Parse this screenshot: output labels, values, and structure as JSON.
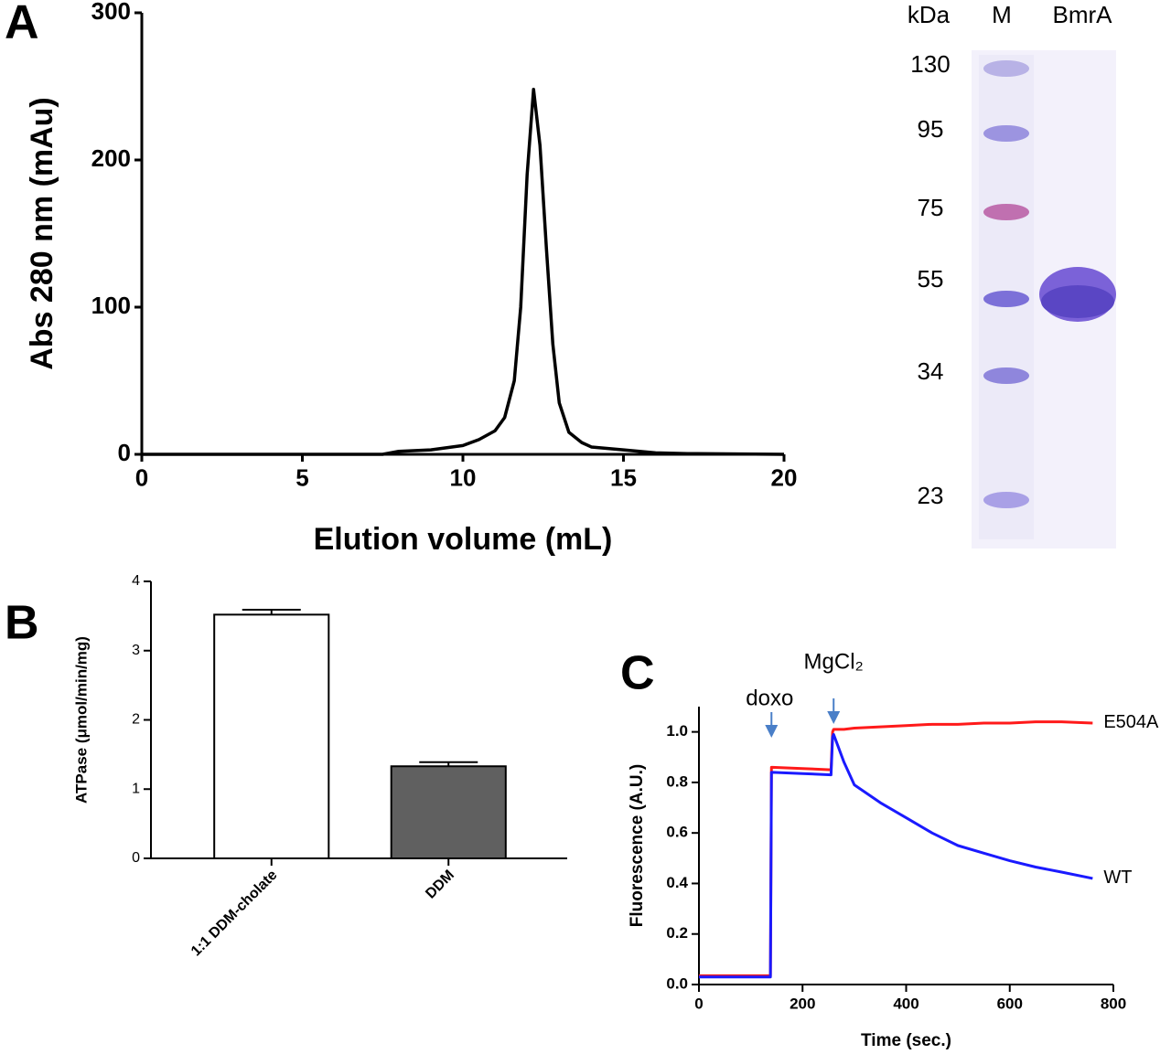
{
  "chart_data": [
    {
      "type": "line",
      "panel": "A",
      "x_label": "Elution volume (mL)",
      "y_label": "Abs 280 nm (mAu)",
      "x": [
        0,
        7.5,
        8,
        9,
        10,
        10.5,
        11,
        11.3,
        11.6,
        11.8,
        12,
        12.2,
        12.4,
        12.6,
        12.8,
        13,
        13.3,
        13.7,
        14,
        15,
        16,
        17,
        20
      ],
      "series": [
        {
          "color": "#000000",
          "values": [
            0,
            0,
            2,
            3,
            6,
            10,
            16,
            25,
            50,
            100,
            190,
            248,
            210,
            140,
            75,
            35,
            15,
            8,
            5,
            3,
            1,
            0.5,
            0
          ]
        }
      ],
      "xlim": [
        0,
        20
      ],
      "xticks": [
        0,
        5,
        10,
        15,
        20
      ],
      "ylim": [
        0,
        300
      ],
      "yticks": [
        0,
        100,
        200,
        300
      ]
    },
    {
      "type": "bar",
      "panel": "B",
      "y_label": "ATPase (μmol/min/mg)",
      "categories": [
        "1:1 DDM-cholate",
        "DDM"
      ],
      "values": [
        3.52,
        1.33
      ],
      "errors": [
        0.07,
        0.06
      ],
      "colors": [
        "#ffffff",
        "#606060"
      ],
      "ylim": [
        0,
        4
      ],
      "yticks": [
        0,
        1,
        2,
        3,
        4
      ]
    },
    {
      "type": "line",
      "panel": "C",
      "x_label": "Time (sec.)",
      "y_label": "Fluorescence (A.U.)",
      "x": [
        0,
        138,
        140,
        142,
        200,
        255,
        258,
        260,
        280,
        300,
        350,
        400,
        450,
        500,
        550,
        600,
        650,
        700,
        760
      ],
      "series": [
        {
          "name": "E504A",
          "color": "#ff1a1a",
          "values": [
            0.035,
            0.035,
            0.86,
            0.86,
            0.855,
            0.85,
            1.0,
            1.01,
            1.01,
            1.015,
            1.02,
            1.025,
            1.03,
            1.03,
            1.035,
            1.035,
            1.04,
            1.04,
            1.035
          ]
        },
        {
          "name": "WT",
          "color": "#1a1aff",
          "values": [
            0.03,
            0.03,
            0.84,
            0.84,
            0.835,
            0.83,
            0.98,
            0.99,
            0.88,
            0.79,
            0.72,
            0.66,
            0.6,
            0.55,
            0.52,
            0.49,
            0.465,
            0.445,
            0.42
          ]
        }
      ],
      "annotations": [
        {
          "text": "doxo",
          "x": 140
        },
        {
          "text": "MgCl₂",
          "x": 260
        }
      ],
      "xlim": [
        0,
        800
      ],
      "xticks": [
        0,
        200,
        400,
        600,
        800
      ],
      "ylim": [
        0,
        1.1
      ],
      "yticks": [
        {
          "value": 0,
          "label": "0.0"
        },
        0.2,
        0.4,
        0.6,
        0.8,
        {
          "value": 1,
          "label": "1.0"
        }
      ]
    }
  ],
  "gel": {
    "headers": [
      "kDa",
      "M",
      "BmrA"
    ],
    "markers": [
      130,
      95,
      75,
      55,
      34,
      23
    ]
  }
}
